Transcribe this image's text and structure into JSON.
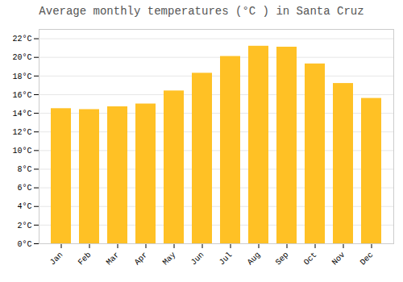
{
  "chart_data": {
    "type": "bar",
    "title": "Average monthly temperatures (°C ) in Santa Cruz",
    "categories": [
      "Jan",
      "Feb",
      "Mar",
      "Apr",
      "May",
      "Jun",
      "Jul",
      "Aug",
      "Sep",
      "Oct",
      "Nov",
      "Dec"
    ],
    "values": [
      14.5,
      14.4,
      14.7,
      15.0,
      16.4,
      18.3,
      20.1,
      21.2,
      21.1,
      19.3,
      17.2,
      15.6
    ],
    "color": "#FFC125",
    "ylim": [
      0,
      23
    ],
    "yticks": [
      {
        "value": 0,
        "label": "0°C"
      },
      {
        "value": 2,
        "label": "2°C"
      },
      {
        "value": 4,
        "label": "4°C"
      },
      {
        "value": 6,
        "label": "6°C"
      },
      {
        "value": 8,
        "label": "8°C"
      },
      {
        "value": 10,
        "label": "10°C"
      },
      {
        "value": 12,
        "label": "12°C"
      },
      {
        "value": 14,
        "label": "14°C"
      },
      {
        "value": 16,
        "label": "16°C"
      },
      {
        "value": 18,
        "label": "18°C"
      },
      {
        "value": 20,
        "label": "20°C"
      },
      {
        "value": 22,
        "label": "22°C"
      }
    ],
    "grid": true
  }
}
